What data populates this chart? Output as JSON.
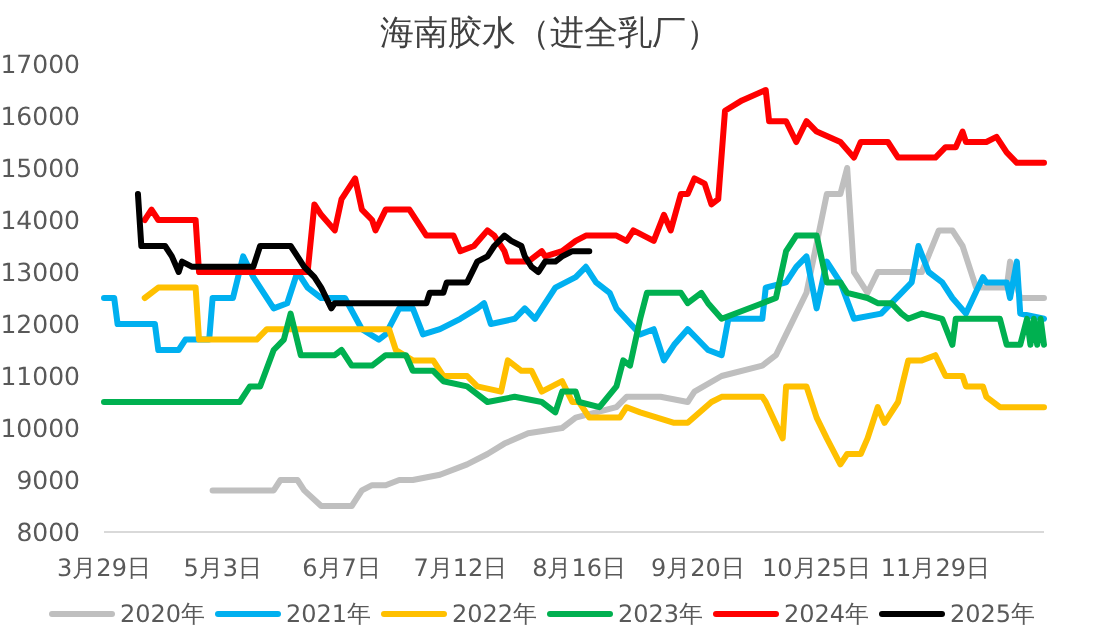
{
  "chart_data": {
    "type": "line",
    "title": "海南胶水（进全乳厂）",
    "legend": "bottom",
    "line_style": "solid",
    "xlim": [
      "--03-29",
      "--12-31"
    ],
    "xticks": [
      {
        "value": "--03-29",
        "label": "3月29日"
      },
      {
        "value": "--05-03",
        "label": "5月3日"
      },
      {
        "value": "--06-07",
        "label": "6月7日"
      },
      {
        "value": "--07-12",
        "label": "7月12日"
      },
      {
        "value": "--08-16",
        "label": "8月16日"
      },
      {
        "value": "--09-20",
        "label": "9月20日"
      },
      {
        "value": "--10-25",
        "label": "10月25日"
      },
      {
        "value": "--11-29",
        "label": "11月29日"
      }
    ],
    "ylim": [
      8000,
      17000
    ],
    "yticks": [
      8000,
      9000,
      10000,
      11000,
      12000,
      13000,
      14000,
      15000,
      16000,
      17000
    ],
    "series": [
      {
        "name": "2020年",
        "color": "#bfbfbf",
        "x": [
          "--04-30",
          "--05-18",
          "--05-20",
          "--05-25",
          "--05-27",
          "--06-01",
          "--06-10",
          "--06-13",
          "--06-16",
          "--06-20",
          "--06-24",
          "--06-28",
          "--07-06",
          "--07-14",
          "--07-20",
          "--07-25",
          "--08-01",
          "--08-11",
          "--08-15",
          "--08-27",
          "--08-30",
          "--09-09",
          "--09-17",
          "--09-19",
          "--09-27",
          "--10-09",
          "--10-13",
          "--10-16",
          "--10-22",
          "--10-28",
          "--11-01",
          "--11-03",
          "--11-05",
          "--11-07",
          "--11-09",
          "--11-12",
          "--11-25",
          "--11-30",
          "--12-04",
          "--12-07",
          "--12-11",
          "--12-20",
          "--12-21",
          "--12-24",
          "--12-31"
        ],
        "values": [
          8800,
          8800,
          9000,
          9000,
          8800,
          8500,
          8500,
          8800,
          8900,
          8900,
          9000,
          9000,
          9100,
          9300,
          9500,
          9700,
          9900,
          10000,
          10200,
          10400,
          10600,
          10600,
          10500,
          10700,
          11000,
          11200,
          11400,
          11800,
          12600,
          14500,
          14500,
          15000,
          13000,
          12800,
          12600,
          13000,
          13000,
          13800,
          13800,
          13500,
          12700,
          12700,
          13200,
          12500,
          12500
        ]
      },
      {
        "name": "2021年",
        "color": "#00b0f0",
        "x": [
          "--03-29",
          "--04-01",
          "--04-02",
          "--04-13",
          "--04-14",
          "--04-20",
          "--04-22",
          "--04-29",
          "--04-30",
          "--05-06",
          "--05-09",
          "--05-12",
          "--05-18",
          "--05-22",
          "--05-25",
          "--05-28",
          "--06-01",
          "--06-08",
          "--06-13",
          "--06-18",
          "--06-20",
          "--06-24",
          "--06-28",
          "--07-01",
          "--07-06",
          "--07-12",
          "--07-17",
          "--07-19",
          "--07-21",
          "--07-28",
          "--07-31",
          "--08-03",
          "--08-09",
          "--08-15",
          "--08-18",
          "--08-21",
          "--08-25",
          "--08-27",
          "--09-03",
          "--09-07",
          "--09-10",
          "--09-13",
          "--09-17",
          "--09-23",
          "--09-27",
          "--09-29",
          "--10-09",
          "--10-10",
          "--10-16",
          "--10-19",
          "--10-22",
          "--10-25",
          "--10-28",
          "--11-01",
          "--11-05",
          "--11-13",
          "--11-19",
          "--11-22",
          "--11-24",
          "--11-27",
          "--12-01",
          "--12-04",
          "--12-08",
          "--12-13",
          "--12-14",
          "--12-20",
          "--12-21",
          "--12-23",
          "--12-24",
          "--12-31"
        ],
        "values": [
          12500,
          12500,
          12000,
          12000,
          11500,
          11500,
          11700,
          11700,
          12500,
          12500,
          13300,
          12900,
          12300,
          12400,
          13000,
          12700,
          12500,
          12500,
          11900,
          11700,
          11800,
          12300,
          12300,
          11800,
          11900,
          12100,
          12300,
          12400,
          12000,
          12100,
          12300,
          12100,
          12700,
          12900,
          13100,
          12800,
          12600,
          12300,
          11800,
          11900,
          11300,
          11600,
          11900,
          11500,
          11400,
          12100,
          12100,
          12700,
          12800,
          13100,
          13300,
          12300,
          13200,
          12800,
          12100,
          12200,
          12600,
          12800,
          13500,
          13000,
          12800,
          12500,
          12200,
          12900,
          12800,
          12800,
          12500,
          13200,
          12200,
          12100
        ]
      },
      {
        "name": "2022年",
        "color": "#ffc000",
        "x": [
          "--04-10",
          "--04-14",
          "--04-25",
          "--04-26",
          "--05-13",
          "--05-16",
          "--06-21",
          "--06-23",
          "--06-28",
          "--07-04",
          "--07-07",
          "--07-14",
          "--07-17",
          "--07-24",
          "--07-26",
          "--07-30",
          "--08-02",
          "--08-05",
          "--08-11",
          "--08-14",
          "--08-16",
          "--08-19",
          "--08-28",
          "--08-30",
          "--09-03",
          "--09-13",
          "--09-17",
          "--09-24",
          "--09-27",
          "--10-09",
          "--10-10",
          "--10-15",
          "--10-16",
          "--10-22",
          "--10-25",
          "--10-28",
          "--11-01",
          "--11-03",
          "--11-07",
          "--11-09",
          "--11-12",
          "--11-14",
          "--11-18",
          "--11-21",
          "--11-25",
          "--11-29",
          "--12-02",
          "--12-07",
          "--12-08",
          "--12-13",
          "--12-14",
          "--12-18",
          "--12-31"
        ],
        "values": [
          12500,
          12700,
          12700,
          11700,
          11700,
          11900,
          11900,
          11500,
          11300,
          11300,
          11000,
          11000,
          10800,
          10700,
          11300,
          11100,
          11100,
          10700,
          10900,
          10500,
          10500,
          10200,
          10200,
          10400,
          10300,
          10100,
          10100,
          10500,
          10600,
          10600,
          10500,
          9800,
          10800,
          10800,
          10200,
          9800,
          9300,
          9500,
          9500,
          9800,
          10400,
          10100,
          10500,
          11300,
          11300,
          11400,
          11000,
          11000,
          10800,
          10800,
          10600,
          10400,
          10400
        ]
      },
      {
        "name": "2023年",
        "color": "#00b050",
        "x": [
          "--03-29",
          "--05-08",
          "--05-11",
          "--05-14",
          "--05-18",
          "--05-21",
          "--05-23",
          "--05-26",
          "--06-05",
          "--06-07",
          "--06-10",
          "--06-16",
          "--06-20",
          "--06-26",
          "--06-28",
          "--07-04",
          "--07-07",
          "--07-14",
          "--07-20",
          "--07-28",
          "--08-05",
          "--08-09",
          "--08-11",
          "--08-15",
          "--08-16",
          "--08-22",
          "--08-27",
          "--08-29",
          "--08-31",
          "--09-03",
          "--09-05",
          "--09-15",
          "--09-17",
          "--09-21",
          "--09-23",
          "--09-27",
          "--10-09",
          "--10-13",
          "--10-16",
          "--10-19",
          "--10-25",
          "--10-26",
          "--10-28",
          "--11-01",
          "--11-03",
          "--11-09",
          "--11-12",
          "--11-16",
          "--11-19",
          "--11-21",
          "--11-25",
          "--12-01",
          "--12-04",
          "--12-05",
          "--12-18",
          "--12-20",
          "--12-24",
          "--12-26",
          "--12-27",
          "--12-28",
          "--12-29",
          "--12-30",
          "--12-31"
        ],
        "values": [
          10500,
          10500,
          10800,
          10800,
          11500,
          11700,
          12200,
          11400,
          11400,
          11500,
          11200,
          11200,
          11400,
          11400,
          11100,
          11100,
          10900,
          10800,
          10500,
          10600,
          10500,
          10300,
          10700,
          10700,
          10500,
          10400,
          10800,
          11300,
          11200,
          12100,
          12600,
          12600,
          12400,
          12600,
          12400,
          12100,
          12400,
          12500,
          13400,
          13700,
          13700,
          13400,
          12800,
          12800,
          12600,
          12500,
          12400,
          12400,
          12200,
          12100,
          12200,
          12100,
          11600,
          12100,
          12100,
          11600,
          11600,
          12100,
          11600,
          12100,
          11600,
          12100,
          11600
        ]
      },
      {
        "name": "2024年",
        "color": "#ff0000",
        "x": [
          "--04-10",
          "--04-12",
          "--04-14",
          "--04-25",
          "--04-26",
          "--05-28",
          "--05-30",
          "--06-01",
          "--06-05",
          "--06-07",
          "--06-11",
          "--06-13",
          "--06-16",
          "--06-17",
          "--06-20",
          "--06-27",
          "--07-02",
          "--07-10",
          "--07-12",
          "--07-16",
          "--07-20",
          "--07-22",
          "--07-25",
          "--07-26",
          "--08-01",
          "--08-05",
          "--08-06",
          "--08-11",
          "--08-15",
          "--08-18",
          "--08-27",
          "--08-30",
          "--09-01",
          "--09-07",
          "--09-10",
          "--09-12",
          "--09-15",
          "--09-17",
          "--09-19",
          "--09-22",
          "--09-24",
          "--09-26",
          "--09-28",
          "--10-03",
          "--10-10",
          "--10-11",
          "--10-16",
          "--10-19",
          "--10-22",
          "--10-25",
          "--11-01",
          "--11-05",
          "--11-07",
          "--11-15",
          "--11-18",
          "--11-29",
          "--12-02",
          "--12-05",
          "--12-07",
          "--12-08",
          "--12-14",
          "--12-17",
          "--12-20",
          "--12-23",
          "--12-31"
        ],
        "values": [
          14000,
          14200,
          14000,
          14000,
          13000,
          13000,
          14300,
          14100,
          13800,
          14400,
          14800,
          14200,
          14000,
          13800,
          14200,
          14200,
          13700,
          13700,
          13400,
          13500,
          13800,
          13700,
          13400,
          13200,
          13200,
          13400,
          13300,
          13400,
          13600,
          13700,
          13700,
          13600,
          13800,
          13600,
          14100,
          13800,
          14500,
          14500,
          14800,
          14700,
          14300,
          14400,
          16100,
          16300,
          16500,
          15900,
          15900,
          15500,
          15900,
          15700,
          15500,
          15200,
          15500,
          15500,
          15200,
          15200,
          15400,
          15400,
          15700,
          15500,
          15500,
          15600,
          15300,
          15100,
          15100
        ]
      },
      {
        "name": "2025年",
        "color": "#000000",
        "x": [
          "--04-08",
          "--04-09",
          "--04-16",
          "--04-18",
          "--04-20",
          "--04-21",
          "--04-24",
          "--05-12",
          "--05-14",
          "--05-23",
          "--05-27",
          "--05-30",
          "--06-01",
          "--06-04",
          "--06-05",
          "--07-02",
          "--07-03",
          "--07-07",
          "--07-08",
          "--07-14",
          "--07-17",
          "--07-20",
          "--07-22",
          "--07-25",
          "--07-27",
          "--07-30",
          "--07-31",
          "--08-02",
          "--08-04",
          "--08-06",
          "--08-09",
          "--08-11",
          "--08-14",
          "--08-19"
        ],
        "values": [
          14500,
          13500,
          13500,
          13300,
          13000,
          13200,
          13100,
          13100,
          13500,
          13500,
          13100,
          12900,
          12700,
          12300,
          12400,
          12400,
          12600,
          12600,
          12800,
          12800,
          13200,
          13300,
          13500,
          13700,
          13600,
          13500,
          13300,
          13100,
          13000,
          13200,
          13200,
          13300,
          13400,
          13400
        ]
      }
    ]
  }
}
